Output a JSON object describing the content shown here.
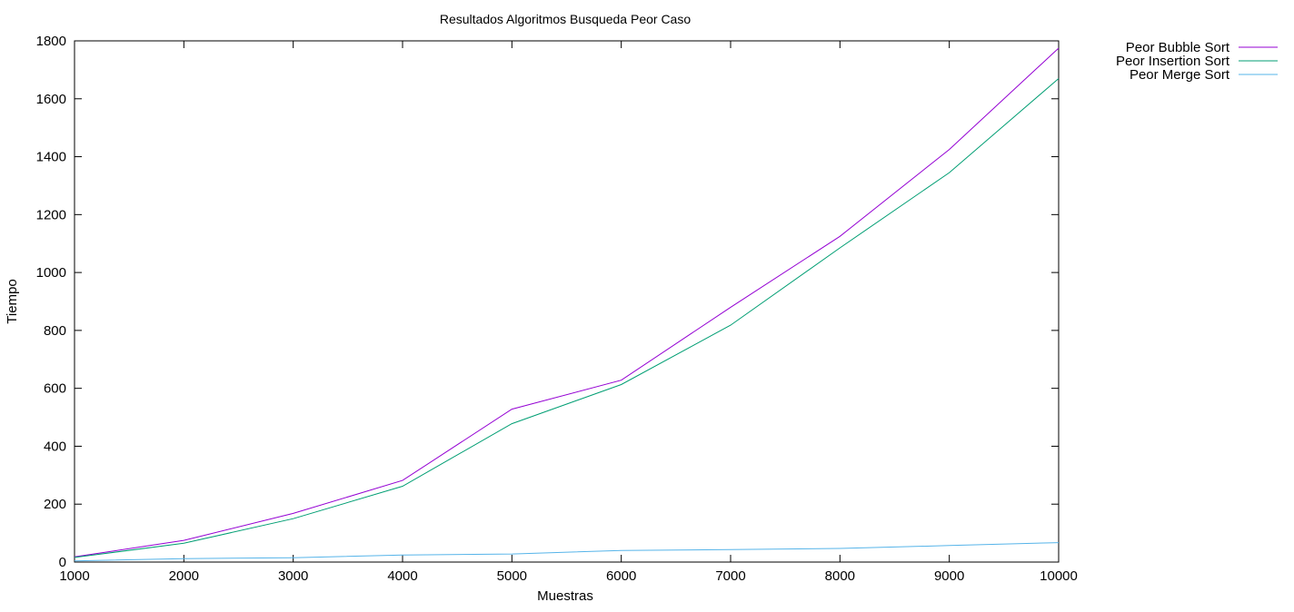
{
  "chart_data": {
    "type": "line",
    "title": "Resultados Algoritmos Busqueda Peor Caso",
    "xlabel": "Muestras",
    "ylabel": "Tiempo",
    "xlim": [
      1000,
      10000
    ],
    "ylim": [
      0,
      1800
    ],
    "x_ticks": [
      1000,
      2000,
      3000,
      4000,
      5000,
      6000,
      7000,
      8000,
      9000,
      10000
    ],
    "y_ticks": [
      0,
      200,
      400,
      600,
      800,
      1000,
      1200,
      1400,
      1600,
      1800
    ],
    "grid": false,
    "legend_position": "outside-top-right",
    "x": [
      1000,
      2000,
      3000,
      4000,
      5000,
      6000,
      7000,
      8000,
      9000,
      10000
    ],
    "series": [
      {
        "name": "Peor Bubble Sort",
        "color": "#9400d3",
        "values": [
          18,
          75,
          168,
          282,
          528,
          628,
          880,
          1125,
          1425,
          1775
        ]
      },
      {
        "name": "Peor Insertion Sort",
        "color": "#009e73",
        "values": [
          16,
          65,
          150,
          262,
          478,
          613,
          818,
          1085,
          1345,
          1670
        ]
      },
      {
        "name": "Peor Merge Sort",
        "color": "#56b4e9",
        "values": [
          4,
          12,
          15,
          24,
          28,
          40,
          43,
          47,
          57,
          67
        ]
      }
    ]
  }
}
